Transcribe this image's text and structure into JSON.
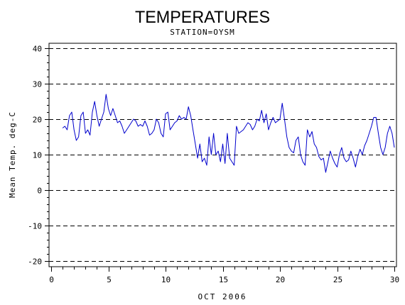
{
  "chart_data": {
    "type": "line",
    "title": "TEMPERATURES",
    "subtitle": "STATION=OYSM",
    "xlabel": "OCT 2006",
    "ylabel": "Mean Temp. deg-C",
    "xlim": [
      0,
      30
    ],
    "ylim": [
      -20,
      40
    ],
    "x_ticks": [
      0,
      5,
      10,
      15,
      20,
      25,
      30
    ],
    "y_ticks": [
      -20,
      -10,
      0,
      10,
      20,
      30,
      40
    ],
    "x_tick_labels": [
      "0",
      "5",
      "10",
      "15",
      "20",
      "25",
      "30"
    ],
    "y_tick_labels": [
      "-20",
      "-10",
      "0",
      "10",
      "20",
      "30",
      "40"
    ],
    "grid": "dashed horizontal at major y ticks",
    "line_color": "#0000cc",
    "series": [
      {
        "values_x": [
          1.0,
          1.2,
          1.4,
          1.6,
          1.8,
          2.0,
          2.2,
          2.4,
          2.6,
          2.8,
          3.0,
          3.2,
          3.4,
          3.6,
          3.8,
          4.0,
          4.2,
          4.4,
          4.6,
          4.8,
          5.0,
          5.2,
          5.4,
          5.6,
          5.8,
          6.0,
          6.2,
          6.4,
          6.6,
          6.8,
          7.0,
          7.2,
          7.4,
          7.6,
          7.8,
          8.0,
          8.2,
          8.4,
          8.6,
          8.8,
          9.0,
          9.2,
          9.4,
          9.6,
          9.8,
          10.0,
          10.2,
          10.4,
          10.6,
          10.8,
          11.0,
          11.2,
          11.4,
          11.6,
          11.8,
          12.0,
          12.2,
          12.4,
          12.6,
          12.8,
          13.0,
          13.2,
          13.4,
          13.6,
          13.8,
          14.0,
          14.2,
          14.4,
          14.6,
          14.8,
          15.0,
          15.2,
          15.4,
          15.6,
          15.8,
          16.0,
          16.2,
          16.4,
          16.6,
          16.8,
          17.0,
          17.2,
          17.4,
          17.6,
          17.8,
          18.0,
          18.2,
          18.4,
          18.6,
          18.8,
          19.0,
          19.2,
          19.4,
          19.6,
          19.8,
          20.0,
          20.2,
          20.4,
          20.6,
          20.8,
          21.0,
          21.2,
          21.4,
          21.6,
          21.8,
          22.0,
          22.2,
          22.4,
          22.6,
          22.8,
          23.0,
          23.2,
          23.4,
          23.6,
          23.8,
          24.0,
          24.2,
          24.4,
          24.6,
          24.8,
          25.0,
          25.2,
          25.4,
          25.6,
          25.8,
          26.0,
          26.2,
          26.4,
          26.6,
          26.8,
          27.0,
          27.2,
          27.4,
          27.6,
          27.8,
          28.0,
          28.2,
          28.4,
          28.6,
          28.8,
          29.0,
          29.2,
          29.4,
          29.6,
          29.8,
          30.0
        ],
        "values_y": [
          17.5,
          18.0,
          17.0,
          21.0,
          22.0,
          17.0,
          14.0,
          15.0,
          21.0,
          22.0,
          16.0,
          17.0,
          15.5,
          22.0,
          25.0,
          21.0,
          18.0,
          20.0,
          22.0,
          27.0,
          23.0,
          21.0,
          23.0,
          21.0,
          19.0,
          19.5,
          18.0,
          16.0,
          17.0,
          18.0,
          19.0,
          20.0,
          19.5,
          18.0,
          18.5,
          18.0,
          19.5,
          18.0,
          15.5,
          16.0,
          17.0,
          20.0,
          19.0,
          16.0,
          15.0,
          21.5,
          22.0,
          17.0,
          18.0,
          19.0,
          19.5,
          21.0,
          20.0,
          20.5,
          20.0,
          23.5,
          21.0,
          17.0,
          13.0,
          9.0,
          13.0,
          8.0,
          9.0,
          7.0,
          15.0,
          10.0,
          16.0,
          10.0,
          11.0,
          8.0,
          13.0,
          7.5,
          16.0,
          9.0,
          8.0,
          7.0,
          18.0,
          16.0,
          16.5,
          17.0,
          18.0,
          19.0,
          18.5,
          17.0,
          18.0,
          20.0,
          19.5,
          22.5,
          19.0,
          21.5,
          17.0,
          19.0,
          20.5,
          19.0,
          19.5,
          20.0,
          24.5,
          20.0,
          15.0,
          12.0,
          11.0,
          10.5,
          14.0,
          15.0,
          10.0,
          8.0,
          7.0,
          17.0,
          15.0,
          16.5,
          13.0,
          12.0,
          9.5,
          8.5,
          9.0,
          5.0,
          8.0,
          11.0,
          9.0,
          7.5,
          6.5,
          10.0,
          12.0,
          9.0,
          8.0,
          8.5,
          11.0,
          9.0,
          6.5,
          9.5,
          11.5,
          10.0,
          12.5,
          14.0,
          16.0,
          18.0,
          20.5,
          20.5,
          16.0,
          12.0,
          10.0,
          12.0,
          16.0,
          18.0,
          16.0,
          12.0
        ]
      }
    ]
  }
}
